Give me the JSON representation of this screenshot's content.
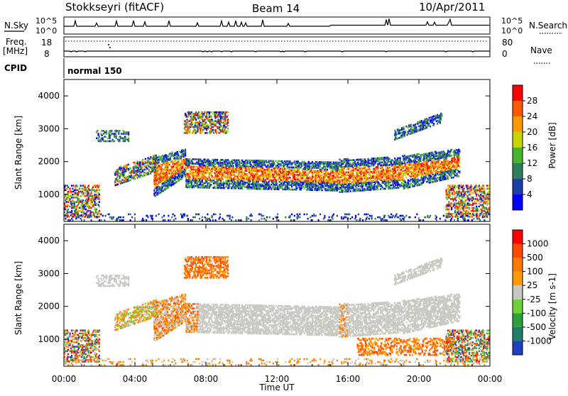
{
  "header": {
    "station": "Stokkseyri (fitACF)",
    "beam": "Beam 14",
    "date": "10/Apr/2011"
  },
  "top_panels": {
    "nsky_label": "N.Sky",
    "nsky_ticks": [
      "10^5",
      "10^0"
    ],
    "nsearch_label": "N.Search",
    "nsearch_ticks": [
      "10^5",
      "10^0"
    ],
    "freq_label": "Freq.",
    "freq_unit": "[MHz]",
    "freq_ticks": [
      "18",
      "8"
    ],
    "nave_label": "Nave",
    "nave_ticks": [
      "80",
      "0"
    ],
    "cpid_label": "CPID",
    "cpid_value": "normal 150"
  },
  "chart_data": [
    {
      "type": "heatmap",
      "quantity": "Power",
      "ylabel": "Slant Range [km]",
      "xlabel": "Time UT",
      "x_range_hours": [
        0,
        24
      ],
      "ylim": [
        180,
        4500
      ],
      "y_ticks": [
        "1000",
        "2000",
        "3000",
        "4000"
      ],
      "x_ticks": [
        "00:00",
        "04:00",
        "08:00",
        "12:00",
        "16:00",
        "20:00",
        "00:00"
      ],
      "colorbar": {
        "label": "Power [dB]",
        "ticks": [
          "4",
          "8",
          "12",
          "16",
          "20",
          "24",
          "28"
        ],
        "colors": [
          "#0000ff",
          "#1f3fa8",
          "#2f7f5f",
          "#49b52f",
          "#c8d400",
          "#ff9a00",
          "#ff5a00",
          "#ff0000"
        ]
      }
    },
    {
      "type": "heatmap",
      "quantity": "Velocity",
      "ylabel": "Slant Range [km]",
      "xlabel": "Time UT",
      "x_range_hours": [
        0,
        24
      ],
      "ylim": [
        180,
        4500
      ],
      "y_ticks": [
        "1000",
        "2000",
        "3000",
        "4000"
      ],
      "x_ticks": [
        "00:00",
        "04:00",
        "08:00",
        "12:00",
        "16:00",
        "20:00",
        "00:00"
      ],
      "colorbar": {
        "label": "Velocity [m s-1]",
        "ticks": [
          "1000",
          "500",
          "100",
          "25",
          "-25",
          "-100",
          "-500",
          "-1000"
        ],
        "colors": [
          "#2040c0",
          "#1f7f6a",
          "#2ca03c",
          "#6dd13a",
          "#c8c8c0",
          "#ff9a00",
          "#ff7a00",
          "#ff4a00",
          "#ff0000"
        ]
      }
    }
  ]
}
